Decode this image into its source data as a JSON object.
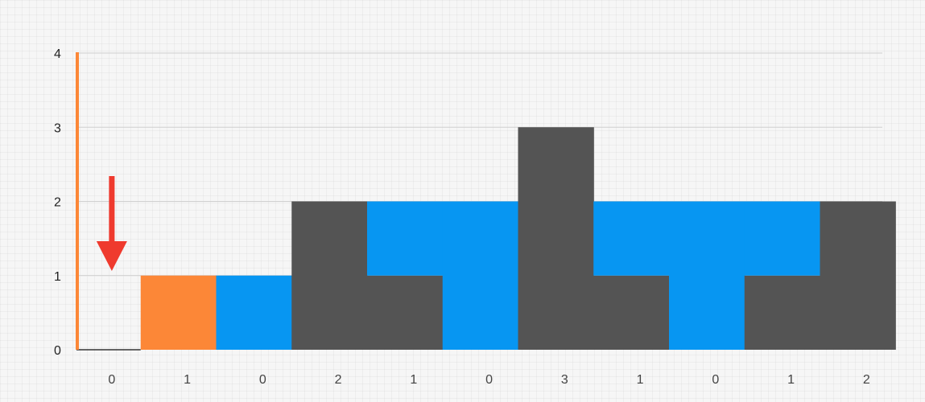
{
  "chart_data": {
    "type": "bar",
    "title": "",
    "xlabel": "",
    "ylabel": "",
    "categories": [
      "0",
      "1",
      "0",
      "2",
      "1",
      "0",
      "3",
      "1",
      "0",
      "1",
      "2"
    ],
    "values": [
      0,
      1,
      0,
      2,
      1,
      0,
      3,
      1,
      0,
      1,
      2
    ],
    "water": [
      0,
      0,
      1,
      0,
      1,
      2,
      0,
      1,
      2,
      1,
      0
    ],
    "highlight_index": 1,
    "pointer_index": 0,
    "ylim": [
      0,
      4
    ],
    "yticks": [
      "0",
      "1",
      "2",
      "3",
      "4"
    ],
    "grid": true,
    "colors": {
      "bar": "#545454",
      "water": "#0796f2",
      "highlight": "#fc8737",
      "axis": "#fc8737",
      "arrow": "#ef3a2e",
      "gridline": "#cfcfcf"
    }
  }
}
